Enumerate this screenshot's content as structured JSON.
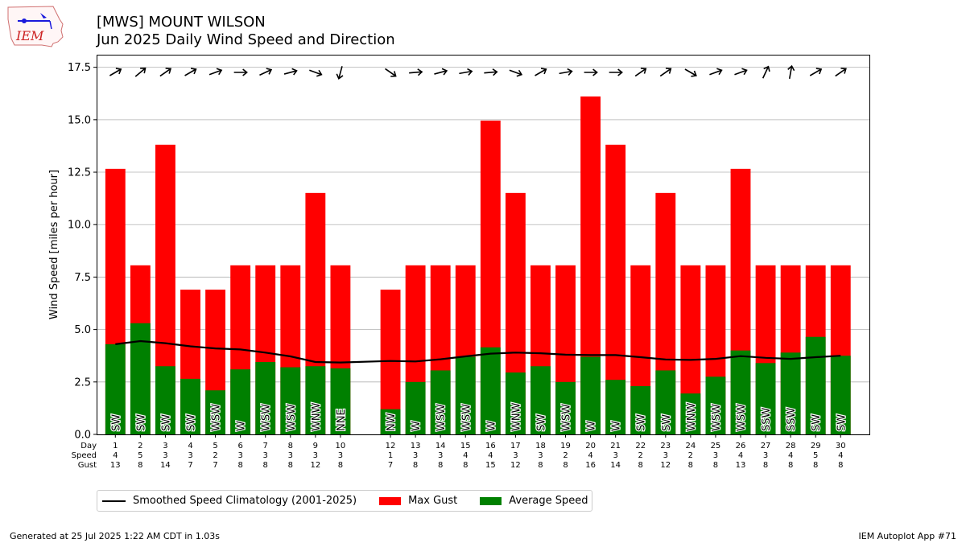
{
  "logo_text": "IEM",
  "title_line1": "[MWS] MOUNT WILSON",
  "title_line2": "Jun 2025 Daily Wind Speed and Direction",
  "footer_left": "Generated at 25 Jul 2025 1:22 AM CDT in 1.03s",
  "footer_right": "IEM Autoplot App #71",
  "colors": {
    "gust": "#ff0000",
    "avg": "#008000",
    "climo": "#000000",
    "grid": "#b0b0b0"
  },
  "chart_data": {
    "type": "bar",
    "ylabel": "Wind Speed [miles per hour]",
    "ylim": [
      0,
      18.1
    ],
    "yticks": [
      "0.0",
      "2.5",
      "5.0",
      "7.5",
      "10.0",
      "12.5",
      "15.0",
      "17.5"
    ],
    "grid": true,
    "legend_position": "below",
    "row_labels": [
      "Day",
      "Speed",
      "Gust"
    ],
    "x": [
      1,
      2,
      3,
      4,
      5,
      6,
      7,
      8,
      9,
      10,
      12,
      13,
      14,
      15,
      16,
      17,
      18,
      19,
      20,
      21,
      22,
      23,
      24,
      25,
      26,
      27,
      28,
      29,
      30
    ],
    "speed_labels": [
      4,
      5,
      3,
      3,
      2,
      3,
      3,
      3,
      3,
      3,
      1,
      3,
      3,
      4,
      4,
      3,
      3,
      2,
      4,
      3,
      2,
      3,
      2,
      3,
      4,
      3,
      4,
      5,
      4
    ],
    "gust_labels": [
      13,
      8,
      14,
      7,
      7,
      8,
      8,
      8,
      12,
      8,
      7,
      8,
      8,
      8,
      15,
      12,
      8,
      8,
      16,
      14,
      8,
      12,
      8,
      8,
      13,
      8,
      8,
      8,
      8
    ],
    "direction": [
      "SW",
      "SW",
      "SW",
      "SW",
      "WSW",
      "W",
      "WSW",
      "WSW",
      "WNW",
      "NNE",
      "NW",
      "W",
      "WSW",
      "WSW",
      "W",
      "WNW",
      "SW",
      "WSW",
      "W",
      "W",
      "SW",
      "SW",
      "WNW",
      "WSW",
      "WSW",
      "SSW",
      "SSW",
      "SW",
      "SW"
    ],
    "arrow_angle_deg": [
      -30,
      -40,
      -35,
      -30,
      -20,
      0,
      -25,
      -15,
      20,
      105,
      35,
      -5,
      -15,
      -10,
      -5,
      20,
      -30,
      -10,
      0,
      0,
      -35,
      -35,
      30,
      -20,
      -20,
      -65,
      -80,
      -30,
      -35
    ],
    "series": [
      {
        "name": "Max Gust",
        "values": [
          12.66,
          8.06,
          13.81,
          6.9,
          6.9,
          8.06,
          8.06,
          8.06,
          11.51,
          8.06,
          6.9,
          8.06,
          8.06,
          8.06,
          14.96,
          11.51,
          8.06,
          8.06,
          16.11,
          13.81,
          8.06,
          11.51,
          8.06,
          8.06,
          12.66,
          8.06,
          8.06,
          8.06,
          8.06
        ]
      },
      {
        "name": "Average Speed",
        "values": [
          4.3,
          5.3,
          3.25,
          2.65,
          2.1,
          3.1,
          3.45,
          3.2,
          3.25,
          3.15,
          1.2,
          2.5,
          3.05,
          3.7,
          4.15,
          2.95,
          3.25,
          2.5,
          3.7,
          2.6,
          2.3,
          3.05,
          1.95,
          2.75,
          4.0,
          3.4,
          3.9,
          4.65,
          3.75
        ]
      },
      {
        "name": "Smoothed Speed Climatology (2001-2025)",
        "values": [
          4.3,
          4.45,
          4.35,
          4.2,
          4.1,
          4.05,
          3.9,
          3.72,
          3.45,
          3.43,
          3.5,
          3.48,
          3.58,
          3.72,
          3.85,
          3.9,
          3.87,
          3.8,
          3.78,
          3.78,
          3.68,
          3.57,
          3.55,
          3.6,
          3.73,
          3.65,
          3.6,
          3.68,
          3.75
        ]
      }
    ]
  }
}
